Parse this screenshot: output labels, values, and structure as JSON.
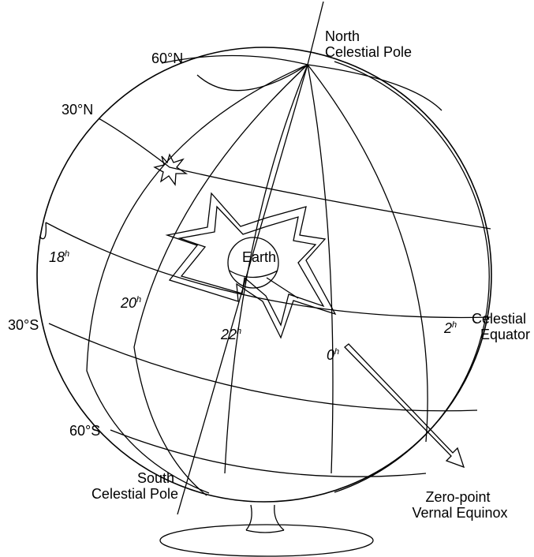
{
  "labels": {
    "north_pole": [
      "North",
      "Celestial Pole"
    ],
    "south_pole": [
      "South",
      "Celestial Pole"
    ],
    "celestial_equator": [
      "Celestial",
      "Equator"
    ],
    "vernal_equinox": [
      "Zero-point",
      "Vernal Equinox"
    ],
    "earth": "Earth",
    "declinations": [
      "60°N",
      "30°N",
      "30°S",
      "60°S"
    ],
    "hours": [
      {
        "number": "18",
        "unit": "h"
      },
      {
        "number": "20",
        "unit": "h"
      },
      {
        "number": "22",
        "unit": "h"
      },
      {
        "number": "0",
        "unit": "h"
      },
      {
        "number": "2",
        "unit": "h"
      }
    ]
  }
}
